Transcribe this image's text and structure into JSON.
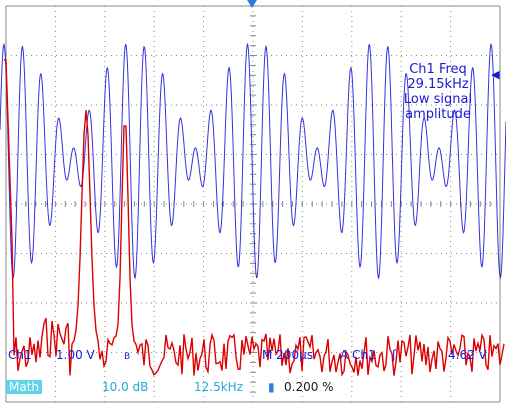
{
  "annotation": {
    "line1": "Ch1 Freq",
    "line2": "29.15kHz",
    "line3": "Low signal",
    "line4": "amplitude"
  },
  "status_ch1": {
    "channel": "Ch1",
    "volts_div": "1.00 V",
    "bw": "B",
    "timebase": "M 200µs",
    "trigger_source": "A  Ch1",
    "trigger_slope": "ʃ",
    "trigger_level": "4.62 V"
  },
  "status_math": {
    "badge": "Math",
    "db_div": "10.0 dB",
    "hz_div": "12.5kHz",
    "position": "0.200 %"
  },
  "colors": {
    "ch1_trace": "#3333dd",
    "math_trace": "#dd0000",
    "grid": "#8a8a8a",
    "math_badge": "#5fd6e8"
  },
  "icons": [
    "trigger-position-marker-icon",
    "ch1-level-arrow-icon",
    "horizontal-position-icon"
  ]
}
